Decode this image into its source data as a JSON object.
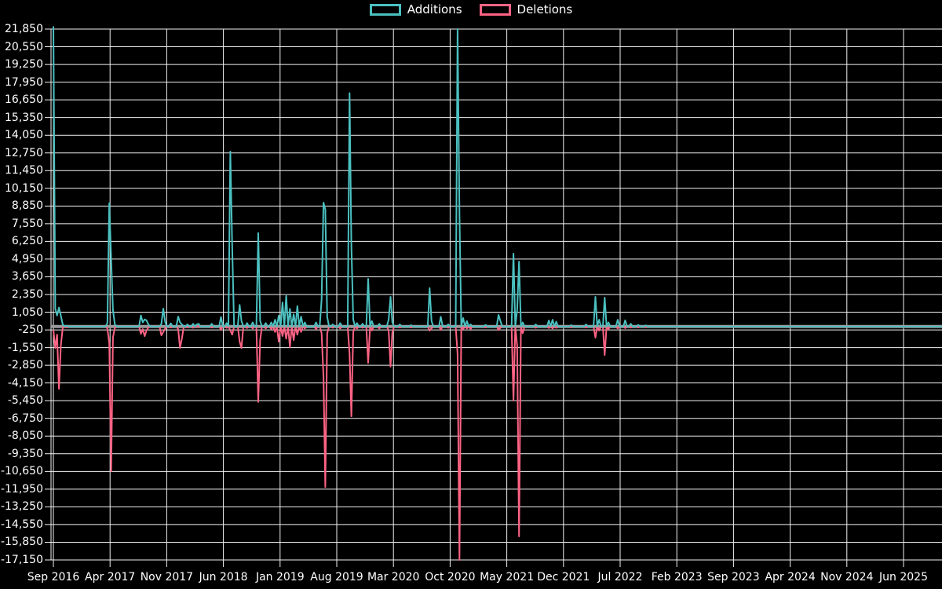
{
  "legend": {
    "items": [
      {
        "label": "Additions",
        "color": "#4BC0C0"
      },
      {
        "label": "Deletions",
        "color": "#FF6384"
      }
    ]
  },
  "colors": {
    "background": "#000000",
    "grid": "#f2f2f2",
    "text": "#ffffff",
    "zero_line": "#9b9b9b",
    "additions": "#4BC0C0",
    "deletions": "#FF6384"
  },
  "chart_data": {
    "type": "line",
    "title": "",
    "legend_position": "top",
    "grid": true,
    "point_markers": false,
    "x_axis": {
      "unit": "weeks",
      "start": "Sep 2016",
      "tick_interval_months": 7,
      "tick_labels": [
        "Sep 2016",
        "Apr 2017",
        "Nov 2017",
        "Jun 2018",
        "Jan 2019",
        "Aug 2019",
        "Mar 2020",
        "Oct 2020",
        "May 2021",
        "Dec 2021",
        "Jul 2022",
        "Feb 2023",
        "Sep 2023",
        "Apr 2024",
        "Nov 2024",
        "Jun 2025"
      ],
      "weeks_total": 477
    },
    "y_axis": {
      "max": 21850,
      "min": -17150,
      "step": 1300,
      "tick_labels": [
        "21,850",
        "20,550",
        "19,250",
        "17,950",
        "16,650",
        "15,350",
        "14,050",
        "12,750",
        "11,450",
        "10,150",
        "8,850",
        "7,550",
        "6,250",
        "4,950",
        "3,650",
        "2,350",
        "1,050",
        "-250",
        "-1,550",
        "-2,850",
        "-4,150",
        "-5,450",
        "-6,750",
        "-8,050",
        "-9,350",
        "-10,650",
        "-11,950",
        "-13,250",
        "-14,550",
        "-15,850",
        "-17,150"
      ]
    },
    "series": [
      {
        "name": "Additions",
        "color": "#4BC0C0",
        "baseline": 0,
        "points_week_value": [
          [
            0,
            22050
          ],
          [
            1,
            1300
          ],
          [
            2,
            810
          ],
          [
            3,
            1385
          ],
          [
            4,
            800
          ],
          [
            5,
            150
          ],
          [
            7,
            60
          ],
          [
            29,
            250
          ],
          [
            30,
            9060
          ],
          [
            31,
            4950
          ],
          [
            32,
            1200
          ],
          [
            33,
            150
          ],
          [
            47,
            810
          ],
          [
            48,
            300
          ],
          [
            49,
            520
          ],
          [
            50,
            450
          ],
          [
            51,
            150
          ],
          [
            58,
            200
          ],
          [
            59,
            1310
          ],
          [
            60,
            330
          ],
          [
            63,
            230
          ],
          [
            67,
            730
          ],
          [
            68,
            300
          ],
          [
            69,
            150
          ],
          [
            72,
            150
          ],
          [
            75,
            200
          ],
          [
            77,
            150
          ],
          [
            78,
            200
          ],
          [
            85,
            200
          ],
          [
            90,
            700
          ],
          [
            93,
            250
          ],
          [
            95,
            12850
          ],
          [
            96,
            5900
          ],
          [
            100,
            1590
          ],
          [
            101,
            400
          ],
          [
            104,
            250
          ],
          [
            107,
            300
          ],
          [
            110,
            6870
          ],
          [
            111,
            400
          ],
          [
            114,
            250
          ],
          [
            117,
            300
          ],
          [
            119,
            500
          ],
          [
            121,
            800
          ],
          [
            123,
            1770
          ],
          [
            125,
            2250
          ],
          [
            127,
            1300
          ],
          [
            129,
            900
          ],
          [
            131,
            1500
          ],
          [
            133,
            730
          ],
          [
            135,
            300
          ],
          [
            141,
            300
          ],
          [
            144,
            2000
          ],
          [
            145,
            9100
          ],
          [
            146,
            8600
          ],
          [
            147,
            700
          ],
          [
            150,
            150
          ],
          [
            154,
            250
          ],
          [
            159,
            17150
          ],
          [
            160,
            6000
          ],
          [
            161,
            500
          ],
          [
            163,
            250
          ],
          [
            166,
            200
          ],
          [
            169,
            3500
          ],
          [
            171,
            400
          ],
          [
            175,
            200
          ],
          [
            180,
            500
          ],
          [
            181,
            2175
          ],
          [
            182,
            300
          ],
          [
            186,
            150
          ],
          [
            192,
            100
          ],
          [
            202,
            2820
          ],
          [
            203,
            400
          ],
          [
            208,
            720
          ],
          [
            212,
            150
          ],
          [
            217,
            21850
          ],
          [
            218,
            8300
          ],
          [
            220,
            620
          ],
          [
            222,
            400
          ],
          [
            224,
            150
          ],
          [
            232,
            120
          ],
          [
            239,
            850
          ],
          [
            240,
            400
          ],
          [
            247,
            5350
          ],
          [
            249,
            1200
          ],
          [
            250,
            4770
          ],
          [
            252,
            300
          ],
          [
            259,
            150
          ],
          [
            266,
            440
          ],
          [
            268,
            500
          ],
          [
            270,
            350
          ],
          [
            278,
            100
          ],
          [
            286,
            150
          ],
          [
            291,
            2175
          ],
          [
            293,
            500
          ],
          [
            296,
            2120
          ],
          [
            298,
            300
          ],
          [
            303,
            500
          ],
          [
            307,
            450
          ],
          [
            310,
            200
          ],
          [
            314,
            120
          ],
          [
            318,
            80
          ]
        ]
      },
      {
        "name": "Deletions",
        "color": "#FF6384",
        "baseline": 0,
        "points_week_value": [
          [
            0,
            -250
          ],
          [
            1,
            -1580
          ],
          [
            2,
            -600
          ],
          [
            3,
            -4580
          ],
          [
            4,
            -1400
          ],
          [
            5,
            -100
          ],
          [
            7,
            -60
          ],
          [
            29,
            -150
          ],
          [
            30,
            -1200
          ],
          [
            31,
            -10650
          ],
          [
            32,
            -800
          ],
          [
            33,
            -100
          ],
          [
            47,
            -540
          ],
          [
            48,
            -200
          ],
          [
            49,
            -710
          ],
          [
            50,
            -300
          ],
          [
            51,
            -80
          ],
          [
            58,
            -650
          ],
          [
            59,
            -400
          ],
          [
            60,
            -150
          ],
          [
            63,
            -80
          ],
          [
            67,
            -200
          ],
          [
            68,
            -1580
          ],
          [
            69,
            -900
          ],
          [
            72,
            -60
          ],
          [
            75,
            -100
          ],
          [
            85,
            -80
          ],
          [
            90,
            -250
          ],
          [
            93,
            -100
          ],
          [
            95,
            -300
          ],
          [
            96,
            -600
          ],
          [
            100,
            -1110
          ],
          [
            101,
            -1580
          ],
          [
            104,
            -120
          ],
          [
            107,
            -150
          ],
          [
            110,
            -5540
          ],
          [
            111,
            -1000
          ],
          [
            114,
            -150
          ],
          [
            117,
            -200
          ],
          [
            119,
            -400
          ],
          [
            121,
            -1110
          ],
          [
            123,
            -700
          ],
          [
            125,
            -900
          ],
          [
            127,
            -1520
          ],
          [
            129,
            -1000
          ],
          [
            131,
            -600
          ],
          [
            133,
            -400
          ],
          [
            135,
            -150
          ],
          [
            141,
            -200
          ],
          [
            144,
            -500
          ],
          [
            145,
            -3700
          ],
          [
            146,
            -11800
          ],
          [
            147,
            -500
          ],
          [
            150,
            -100
          ],
          [
            154,
            -150
          ],
          [
            159,
            -2000
          ],
          [
            160,
            -6600
          ],
          [
            161,
            -400
          ],
          [
            163,
            -150
          ],
          [
            166,
            -100
          ],
          [
            169,
            -2670
          ],
          [
            171,
            -300
          ],
          [
            175,
            -150
          ],
          [
            180,
            -300
          ],
          [
            181,
            -2950
          ],
          [
            182,
            -400
          ],
          [
            186,
            -80
          ],
          [
            192,
            -60
          ],
          [
            202,
            -300
          ],
          [
            203,
            -150
          ],
          [
            208,
            -250
          ],
          [
            212,
            -100
          ],
          [
            217,
            -2000
          ],
          [
            218,
            -17150
          ],
          [
            220,
            -190
          ],
          [
            222,
            -150
          ],
          [
            224,
            -190
          ],
          [
            232,
            -60
          ],
          [
            239,
            -250
          ],
          [
            240,
            -100
          ],
          [
            247,
            -5440
          ],
          [
            249,
            -1400
          ],
          [
            250,
            -15420
          ],
          [
            252,
            -500
          ],
          [
            259,
            -100
          ],
          [
            266,
            -120
          ],
          [
            268,
            -150
          ],
          [
            270,
            -100
          ],
          [
            278,
            -50
          ],
          [
            286,
            -80
          ],
          [
            291,
            -825
          ],
          [
            293,
            -300
          ],
          [
            296,
            -2100
          ],
          [
            298,
            -200
          ],
          [
            303,
            -150
          ],
          [
            307,
            -120
          ],
          [
            310,
            -80
          ],
          [
            314,
            -60
          ],
          [
            318,
            -40
          ]
        ]
      }
    ]
  }
}
